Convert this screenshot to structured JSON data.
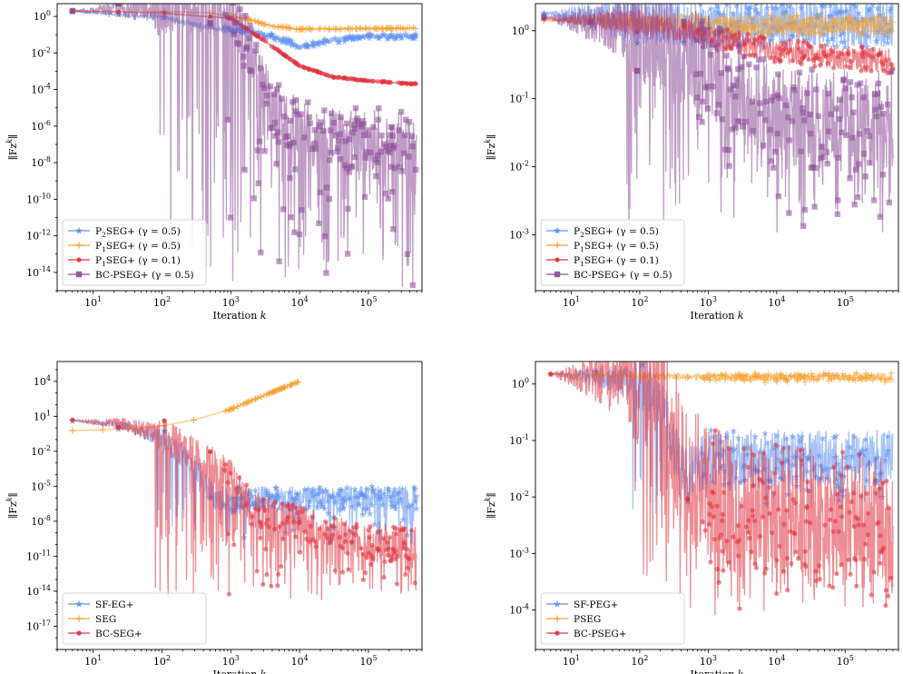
{
  "chart_data": [
    {
      "type": "line",
      "xscale": "log",
      "yscale": "log",
      "xlabel": "Iteration k",
      "ylabel": "||F z^k||",
      "xlim": [
        3,
        600000
      ],
      "ylim": [
        1e-15,
        5
      ],
      "xticks": [
        {
          "v": 10,
          "b": "10",
          "e": "1"
        },
        {
          "v": 100,
          "b": "10",
          "e": "2"
        },
        {
          "v": 1000,
          "b": "10",
          "e": "3"
        },
        {
          "v": 10000,
          "b": "10",
          "e": "4"
        },
        {
          "v": 100000,
          "b": "10",
          "e": "5"
        }
      ],
      "yticks": [
        {
          "v": 1,
          "b": "10",
          "e": "0"
        },
        {
          "v": 0.01,
          "b": "10",
          "e": "-2"
        },
        {
          "v": 0.0001,
          "b": "10",
          "e": "-4"
        },
        {
          "v": 1e-06,
          "b": "10",
          "e": "-6"
        },
        {
          "v": 1e-08,
          "b": "10",
          "e": "-8"
        },
        {
          "v": 1e-10,
          "b": "10",
          "e": "-10"
        },
        {
          "v": 1e-12,
          "b": "10",
          "e": "-12"
        },
        {
          "v": 1e-14,
          "b": "10",
          "e": "-14"
        }
      ],
      "legend_position": "lower-left",
      "series": [
        {
          "name": "P2SEG+ (γ = 0.5)",
          "legend": {
            "head": "P",
            "sub": "2",
            "tail": "SEG+ (γ = 0.5)"
          },
          "color": "#5b8ff0",
          "marker": "star",
          "x": [
            5,
            100,
            500,
            2000,
            6000,
            10000,
            30000,
            100000,
            500000
          ],
          "y": [
            1.8,
            0.9,
            0.25,
            0.15,
            0.05,
            0.02,
            0.05,
            0.08,
            0.08
          ],
          "noise": 0.5
        },
        {
          "name": "P1SEG+ (γ = 0.5)",
          "legend": {
            "head": "P",
            "sub": "1",
            "tail": "SEG+ (γ = 0.5)"
          },
          "color": "#f5a030",
          "marker": "plus",
          "x": [
            5,
            100,
            500,
            1500,
            4000,
            10000,
            100000,
            500000
          ],
          "y": [
            2.0,
            1.8,
            1.6,
            0.8,
            0.3,
            0.2,
            0.22,
            0.22
          ],
          "noise": 0.15
        },
        {
          "name": "P1SEG+ (γ = 0.1)",
          "legend": {
            "head": "P",
            "sub": "1",
            "tail": "SEG+ (γ = 0.1)"
          },
          "color": "#e0303a",
          "marker": "circle",
          "x": [
            5,
            100,
            1000,
            3000,
            10000,
            30000,
            100000,
            500000
          ],
          "y": [
            2.0,
            1.5,
            0.8,
            0.05,
            0.002,
            0.0005,
            0.0003,
            0.0002
          ],
          "noise": 0.1
        },
        {
          "name": "BC-PSEG+ (γ = 0.5)",
          "legend": {
            "head": "BC-PSEG+ (γ = 0.5)",
            "sub": "",
            "tail": ""
          },
          "color": "#8a4a95",
          "marker": "square",
          "x": [
            5,
            100,
            300,
            1000,
            2000,
            4000,
            10000,
            50000,
            500000
          ],
          "y": [
            2.0,
            3.0,
            4.0,
            1.5,
            0.01,
            1e-05,
            1e-06,
            1e-07,
            1e-07
          ],
          "noise": 3.0,
          "band": [
            1e-15,
            1e-05
          ]
        }
      ]
    },
    {
      "type": "line",
      "xscale": "log",
      "yscale": "log",
      "xlabel": "Iteration k",
      "ylabel": "||F z^k||",
      "xlim": [
        3,
        600000
      ],
      "ylim": [
        0.00015,
        2.5
      ],
      "xticks": [
        {
          "v": 10,
          "b": "10",
          "e": "1"
        },
        {
          "v": 100,
          "b": "10",
          "e": "2"
        },
        {
          "v": 1000,
          "b": "10",
          "e": "3"
        },
        {
          "v": 10000,
          "b": "10",
          "e": "4"
        },
        {
          "v": 100000,
          "b": "10",
          "e": "5"
        }
      ],
      "yticks": [
        {
          "v": 1,
          "b": "10",
          "e": "0"
        },
        {
          "v": 0.1,
          "b": "10",
          "e": "-1"
        },
        {
          "v": 0.01,
          "b": "10",
          "e": "-2"
        },
        {
          "v": 0.001,
          "b": "10",
          "e": "-3"
        }
      ],
      "legend_position": "lower-left",
      "series": [
        {
          "name": "P2SEG+ (γ = 0.5)",
          "legend": {
            "head": "P",
            "sub": "2",
            "tail": "SEG+ (γ = 0.5)"
          },
          "color": "#5b8ff0",
          "marker": "star",
          "x": [
            4,
            100,
            1000,
            10000,
            500000
          ],
          "y": [
            1.8,
            1.5,
            1.2,
            1.3,
            1.3
          ],
          "noise": 1.2
        },
        {
          "name": "P1SEG+ (γ = 0.5)",
          "legend": {
            "head": "P",
            "sub": "1",
            "tail": "SEG+ (γ = 0.5)"
          },
          "color": "#f5a030",
          "marker": "plus",
          "x": [
            4,
            100,
            1000,
            10000,
            500000
          ],
          "y": [
            1.4,
            1.4,
            1.2,
            1.2,
            1.2
          ],
          "noise": 0.5
        },
        {
          "name": "P1SEG+ (γ = 0.1)",
          "legend": {
            "head": "P",
            "sub": "1",
            "tail": "SEG+ (γ = 0.1)"
          },
          "color": "#e0303a",
          "marker": "circle",
          "x": [
            4,
            100,
            1000,
            10000,
            500000
          ],
          "y": [
            1.5,
            1.3,
            0.8,
            0.5,
            0.35
          ],
          "noise": 0.6
        },
        {
          "name": "BC-PSEG+ (γ = 0.5)",
          "legend": {
            "head": "BC-PSEG+ (γ = 0.5)",
            "sub": "",
            "tail": ""
          },
          "color": "#8a4a95",
          "marker": "square",
          "x": [
            4,
            100,
            1000,
            10000,
            500000
          ],
          "y": [
            1.6,
            1.0,
            0.3,
            0.05,
            0.05
          ],
          "noise": 1.5,
          "band": [
            0.001,
            0.2
          ]
        }
      ]
    },
    {
      "type": "line",
      "xscale": "log",
      "yscale": "log",
      "xlabel": "Iteration k",
      "ylabel": "||F z^k||",
      "xlim": [
        3,
        600000
      ],
      "ylim": [
        1e-19,
        500000
      ],
      "xticks": [
        {
          "v": 10,
          "b": "10",
          "e": "1"
        },
        {
          "v": 100,
          "b": "10",
          "e": "2"
        },
        {
          "v": 1000,
          "b": "10",
          "e": "3"
        },
        {
          "v": 10000,
          "b": "10",
          "e": "4"
        },
        {
          "v": 100000,
          "b": "10",
          "e": "5"
        }
      ],
      "yticks": [
        {
          "v": 10000,
          "b": "10",
          "e": "4"
        },
        {
          "v": 10,
          "b": "10",
          "e": "1"
        },
        {
          "v": 0.01,
          "b": "10",
          "e": "-2"
        },
        {
          "v": 1e-05,
          "b": "10",
          "e": "-5"
        },
        {
          "v": 1e-08,
          "b": "10",
          "e": "-8"
        },
        {
          "v": 1e-11,
          "b": "10",
          "e": "-11"
        },
        {
          "v": 1e-14,
          "b": "10",
          "e": "-14"
        },
        {
          "v": 1e-17,
          "b": "10",
          "e": "-17"
        }
      ],
      "legend_position": "lower-left",
      "series": [
        {
          "name": "SF-EG+",
          "legend": {
            "head": "SF-EG+",
            "sub": "",
            "tail": ""
          },
          "color": "#5b8ff0",
          "marker": "star",
          "x": [
            5,
            30,
            100,
            300,
            600,
            1000,
            3000,
            10000,
            100000,
            500000
          ],
          "y": [
            4,
            1.5,
            0.1,
            0.0005,
            1e-06,
            3e-07,
            1e-06,
            1e-06,
            1e-06,
            1e-06
          ],
          "noise": 2.0,
          "band": [
            1e-10,
            1e-05
          ]
        },
        {
          "name": "SEG",
          "legend": {
            "head": "SEG",
            "sub": "",
            "tail": ""
          },
          "color": "#f5a030",
          "marker": "plus",
          "x": [
            5,
            30,
            100,
            300,
            1000,
            3000,
            10000
          ],
          "y": [
            0.6,
            0.8,
            1.5,
            5,
            40,
            600,
            10000
          ],
          "noise": 0.0
        },
        {
          "name": "BC-SEG+",
          "legend": {
            "head": "BC-SEG+",
            "sub": "",
            "tail": ""
          },
          "color": "#e0303a",
          "marker": "circle",
          "x": [
            5,
            30,
            100,
            300,
            1000,
            2000,
            10000,
            100000,
            500000
          ],
          "y": [
            5,
            2,
            0.2,
            0.005,
            0.0001,
            1e-07,
            1e-08,
            1e-10,
            1e-10
          ],
          "noise": 3.0,
          "band": [
            1e-15,
            1e-08
          ]
        }
      ]
    },
    {
      "type": "line",
      "xscale": "log",
      "yscale": "log",
      "xlabel": "Iteration k",
      "ylabel": "||F z^k||",
      "xlim": [
        3,
        600000
      ],
      "ylim": [
        2e-05,
        2.5
      ],
      "xticks": [
        {
          "v": 10,
          "b": "10",
          "e": "1"
        },
        {
          "v": 100,
          "b": "10",
          "e": "2"
        },
        {
          "v": 1000,
          "b": "10",
          "e": "3"
        },
        {
          "v": 10000,
          "b": "10",
          "e": "4"
        },
        {
          "v": 100000,
          "b": "10",
          "e": "5"
        }
      ],
      "yticks": [
        {
          "v": 1,
          "b": "10",
          "e": "0"
        },
        {
          "v": 0.1,
          "b": "10",
          "e": "-1"
        },
        {
          "v": 0.01,
          "b": "10",
          "e": "-2"
        },
        {
          "v": 0.001,
          "b": "10",
          "e": "-3"
        },
        {
          "v": 0.0001,
          "b": "10",
          "e": "-4"
        }
      ],
      "legend_position": "lower-left",
      "series": [
        {
          "name": "SF-PEG+",
          "legend": {
            "head": "SF-PEG+",
            "sub": "",
            "tail": ""
          },
          "color": "#5b8ff0",
          "marker": "star",
          "x": [
            5,
            30,
            100,
            200,
            500,
            1000,
            10000,
            500000
          ],
          "y": [
            1.5,
            1.3,
            1.0,
            0.5,
            0.02,
            0.05,
            0.05,
            0.05
          ],
          "noise": 1.0,
          "band": [
            0.005,
            0.15
          ]
        },
        {
          "name": "PSEG",
          "legend": {
            "head": "PSEG",
            "sub": "",
            "tail": ""
          },
          "color": "#f5a030",
          "marker": "plus",
          "x": [
            5,
            100,
            1000,
            10000,
            500000
          ],
          "y": [
            1.5,
            1.4,
            1.3,
            1.3,
            1.3
          ],
          "noise": 0.12,
          "band": [
            1.05,
            1.6
          ]
        },
        {
          "name": "BC-PSEG+",
          "legend": {
            "head": "BC-PSEG+",
            "sub": "",
            "tail": ""
          },
          "color": "#e0303a",
          "marker": "circle",
          "x": [
            5,
            30,
            100,
            200,
            400,
            1000,
            10000,
            500000
          ],
          "y": [
            1.5,
            1.2,
            1.0,
            0.6,
            0.05,
            0.01,
            0.005,
            0.003
          ],
          "noise": 2.5,
          "band": [
            5e-05,
            0.02
          ]
        }
      ]
    }
  ]
}
